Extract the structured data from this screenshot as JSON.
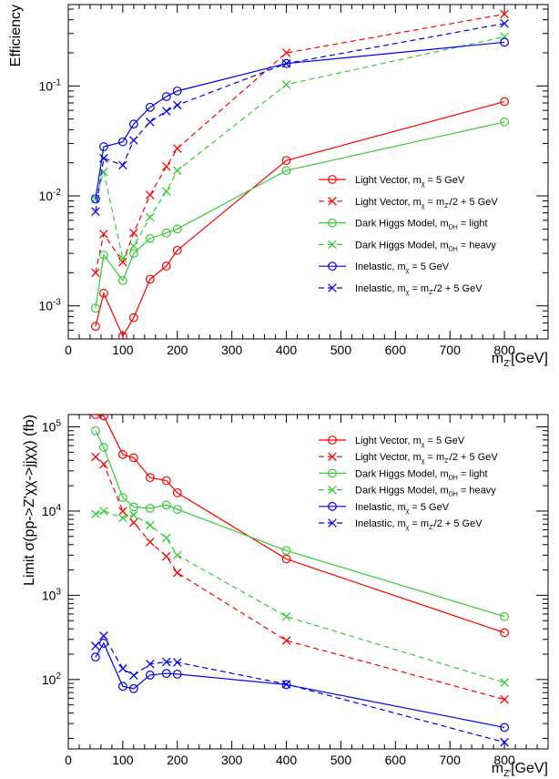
{
  "chart_data": [
    {
      "type": "line",
      "log_y": true,
      "ylabel": "Efficiency",
      "xlabel_main": "m",
      "xlabel_sub": "Z'",
      "xlabel_unit": "[GeV]",
      "xlim": [
        0,
        880
      ],
      "ylim": [
        0.0005,
        0.55
      ],
      "x_ticks": [
        "0",
        "100",
        "200",
        "300",
        "400",
        "500",
        "600",
        "700",
        "800"
      ],
      "y_ticks": [
        {
          "base": "10",
          "exp": "-3",
          "value": 0.001
        },
        {
          "base": "10",
          "exp": "-2",
          "value": 0.01
        },
        {
          "base": "10",
          "exp": "-1",
          "value": 0.1
        }
      ],
      "legend_position": "right",
      "series": [
        {
          "name": "Light Vector",
          "name_sub": "m",
          "name_sub2": "χ",
          "name_tail": " = 5 GeV",
          "color": "#ff0000",
          "marker": "circle",
          "dash": false,
          "x": [
            50,
            65,
            100,
            120,
            150,
            180,
            200,
            400,
            800
          ],
          "y": [
            0.00065,
            0.0013,
            0.00053,
            0.00078,
            0.00175,
            0.0023,
            0.0032,
            0.021,
            0.072
          ]
        },
        {
          "name": "Light Vector",
          "name_sub": "m",
          "name_sub2": "χ",
          "name_tail": " = m",
          "name_tail_sub": "Z'",
          "name_tail2": "/2 + 5 GeV",
          "color": "#ff0000",
          "marker": "cross",
          "dash": true,
          "x": [
            50,
            65,
            100,
            120,
            150,
            180,
            200,
            400,
            800
          ],
          "y": [
            0.002,
            0.0045,
            0.0025,
            0.0046,
            0.0102,
            0.0185,
            0.027,
            0.2,
            0.45
          ]
        },
        {
          "name": "Dark Higgs Model",
          "name_sub": "m",
          "name_sub2": "DH",
          "name_tail": " = light",
          "color": "#33cc33",
          "marker": "circle",
          "dash": false,
          "x": [
            50,
            65,
            100,
            120,
            150,
            180,
            200,
            400,
            800
          ],
          "y": [
            0.00095,
            0.0029,
            0.0017,
            0.003,
            0.0041,
            0.0046,
            0.005,
            0.017,
            0.047
          ]
        },
        {
          "name": "Dark Higgs Model",
          "name_sub": "m",
          "name_sub2": "DH",
          "name_tail": " = heavy",
          "color": "#33cc33",
          "marker": "cross",
          "dash": true,
          "x": [
            50,
            65,
            100,
            120,
            150,
            180,
            200,
            400,
            800
          ],
          "y": [
            0.0094,
            0.0165,
            0.0027,
            0.0035,
            0.0064,
            0.011,
            0.017,
            0.103,
            0.28
          ]
        },
        {
          "name": "Inelastic",
          "name_sub": "m",
          "name_sub2": "χ",
          "name_tail": " = 5 GeV",
          "color": "#0000ee",
          "marker": "circle",
          "dash": false,
          "x": [
            50,
            65,
            100,
            120,
            150,
            180,
            200,
            400,
            800
          ],
          "y": [
            0.0094,
            0.028,
            0.031,
            0.045,
            0.064,
            0.08,
            0.09,
            0.16,
            0.25
          ]
        },
        {
          "name": "Inelastic",
          "name_sub": "m",
          "name_sub2": "χ",
          "name_tail": " = m",
          "name_tail_sub": "Z'",
          "name_tail2": "/2 + 5 GeV",
          "color": "#0000ee",
          "marker": "cross",
          "dash": true,
          "x": [
            50,
            65,
            100,
            120,
            150,
            180,
            200,
            400,
            800
          ],
          "y": [
            0.0072,
            0.022,
            0.019,
            0.032,
            0.047,
            0.059,
            0.067,
            0.16,
            0.37
          ]
        }
      ]
    },
    {
      "type": "line",
      "log_y": true,
      "ylabel": "Limit σ(pp->Z'χχ->jjχχ) (fb)",
      "xlabel_main": "m",
      "xlabel_sub": "Z'",
      "xlabel_unit": "[GeV]",
      "xlim": [
        0,
        880
      ],
      "ylim": [
        15,
        140000
      ],
      "x_ticks": [
        "0",
        "100",
        "200",
        "300",
        "400",
        "500",
        "600",
        "700",
        "800"
      ],
      "y_ticks": [
        {
          "base": "10",
          "exp": "2",
          "value": 100
        },
        {
          "base": "10",
          "exp": "3",
          "value": 1000
        },
        {
          "base": "10",
          "exp": "4",
          "value": 10000
        },
        {
          "base": "10",
          "exp": "5",
          "value": 100000
        }
      ],
      "legend_position": "top-right",
      "series": [
        {
          "name": "Light Vector",
          "name_sub": "m",
          "name_sub2": "χ",
          "name_tail": " = 5 GeV",
          "color": "#ff0000",
          "marker": "circle",
          "dash": false,
          "x": [
            50,
            65,
            100,
            120,
            150,
            180,
            200,
            400,
            800
          ],
          "y": [
            140000,
            135000,
            47000,
            43000,
            25000,
            23000,
            16500,
            2700,
            360
          ]
        },
        {
          "name": "Light Vector",
          "name_sub": "m",
          "name_sub2": "χ",
          "name_tail": " = m",
          "name_tail_sub": "Z'",
          "name_tail2": "/2 + 5 GeV",
          "color": "#ff0000",
          "marker": "cross",
          "dash": true,
          "x": [
            50,
            65,
            100,
            120,
            150,
            180,
            200,
            400,
            800
          ],
          "y": [
            44000,
            36000,
            10000,
            7300,
            4300,
            2900,
            1850,
            290,
            58
          ]
        },
        {
          "name": "Dark Higgs Model",
          "name_sub": "m",
          "name_sub2": "DH",
          "name_tail": " = light",
          "color": "#33cc33",
          "marker": "circle",
          "dash": false,
          "x": [
            50,
            65,
            100,
            120,
            150,
            180,
            200,
            400,
            800
          ],
          "y": [
            90000,
            57000,
            14500,
            11200,
            10800,
            11800,
            10500,
            3400,
            560
          ]
        },
        {
          "name": "Dark Higgs Model",
          "name_sub": "m",
          "name_sub2": "DH",
          "name_tail": " = heavy",
          "color": "#33cc33",
          "marker": "cross",
          "dash": true,
          "x": [
            50,
            65,
            100,
            120,
            150,
            180,
            200,
            400,
            800
          ],
          "y": [
            9200,
            10000,
            8300,
            9000,
            6800,
            4800,
            3000,
            560,
            92
          ]
        },
        {
          "name": "Inelastic",
          "name_sub": "m",
          "name_sub2": "χ",
          "name_tail": " = 5 GeV",
          "color": "#0000ee",
          "marker": "circle",
          "dash": false,
          "x": [
            50,
            65,
            100,
            120,
            150,
            180,
            200,
            400,
            800
          ],
          "y": [
            185,
            270,
            83,
            78,
            113,
            118,
            116,
            87,
            27
          ]
        },
        {
          "name": "Inelastic",
          "name_sub": "m",
          "name_sub2": "χ",
          "name_tail": " = m",
          "name_tail_sub": "Z'",
          "name_tail2": "/2 + 5 GeV",
          "color": "#0000ee",
          "marker": "cross",
          "dash": true,
          "x": [
            50,
            65,
            100,
            120,
            150,
            180,
            200,
            400,
            800
          ],
          "y": [
            250,
            330,
            135,
            112,
            153,
            162,
            160,
            88,
            18
          ]
        }
      ]
    }
  ]
}
